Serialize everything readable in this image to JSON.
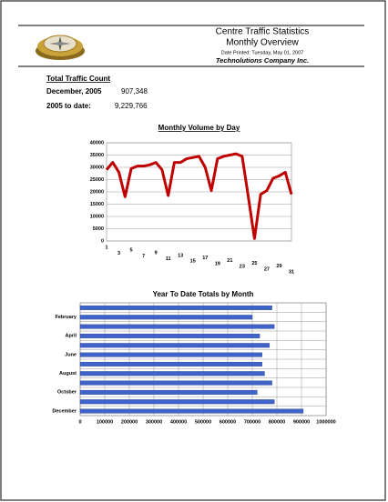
{
  "header": {
    "title": "Centre Traffic Statistics",
    "subtitle": "Monthly Overview",
    "date": "Date Printed: Tuesday, May 01, 2007",
    "company": "Technolutions Company Inc."
  },
  "summary": {
    "heading": "Total Traffic Count",
    "rows": [
      [
        "December, 2005",
        "907,348"
      ],
      [
        "2005 to date:",
        "9,229,766"
      ]
    ]
  },
  "chart_data": [
    {
      "type": "line",
      "title": "Monthly Volume by Day",
      "categories": [
        "1",
        null,
        "3",
        null,
        "5",
        null,
        "7",
        null,
        "9",
        null,
        "11",
        null,
        "13",
        null,
        "15",
        null,
        "17",
        null,
        "19",
        null,
        "21",
        null,
        "23",
        null,
        "25",
        null,
        "27",
        null,
        "29",
        null,
        "31"
      ],
      "values": [
        29000,
        32000,
        28000,
        18000,
        29500,
        30500,
        30500,
        31000,
        32000,
        29000,
        18500,
        32000,
        32000,
        33500,
        34000,
        34500,
        30000,
        20500,
        33500,
        34500,
        35000,
        35500,
        34500,
        18000,
        1000,
        19000,
        20500,
        25500,
        26500,
        28000,
        19000
      ],
      "color": "#c00000",
      "ylim": [
        0,
        40000
      ],
      "yticks": [
        0,
        5000,
        10000,
        15000,
        20000,
        25000,
        30000,
        35000,
        40000
      ],
      "grid": true
    },
    {
      "type": "hbar",
      "title": "Year To Date Totals by Month",
      "categories": [
        null,
        "February",
        null,
        "April",
        null,
        "June",
        null,
        "August",
        null,
        "October",
        null,
        "December"
      ],
      "values": [
        780000,
        700000,
        790000,
        730000,
        770000,
        740000,
        740000,
        750000,
        780000,
        720000,
        790000,
        907348
      ],
      "color": "#3f63c8",
      "xlim": [
        0,
        1000000
      ],
      "xticks": [
        0,
        100000,
        200000,
        300000,
        400000,
        500000,
        600000,
        700000,
        800000,
        900000,
        1000000
      ],
      "grid": true
    }
  ]
}
